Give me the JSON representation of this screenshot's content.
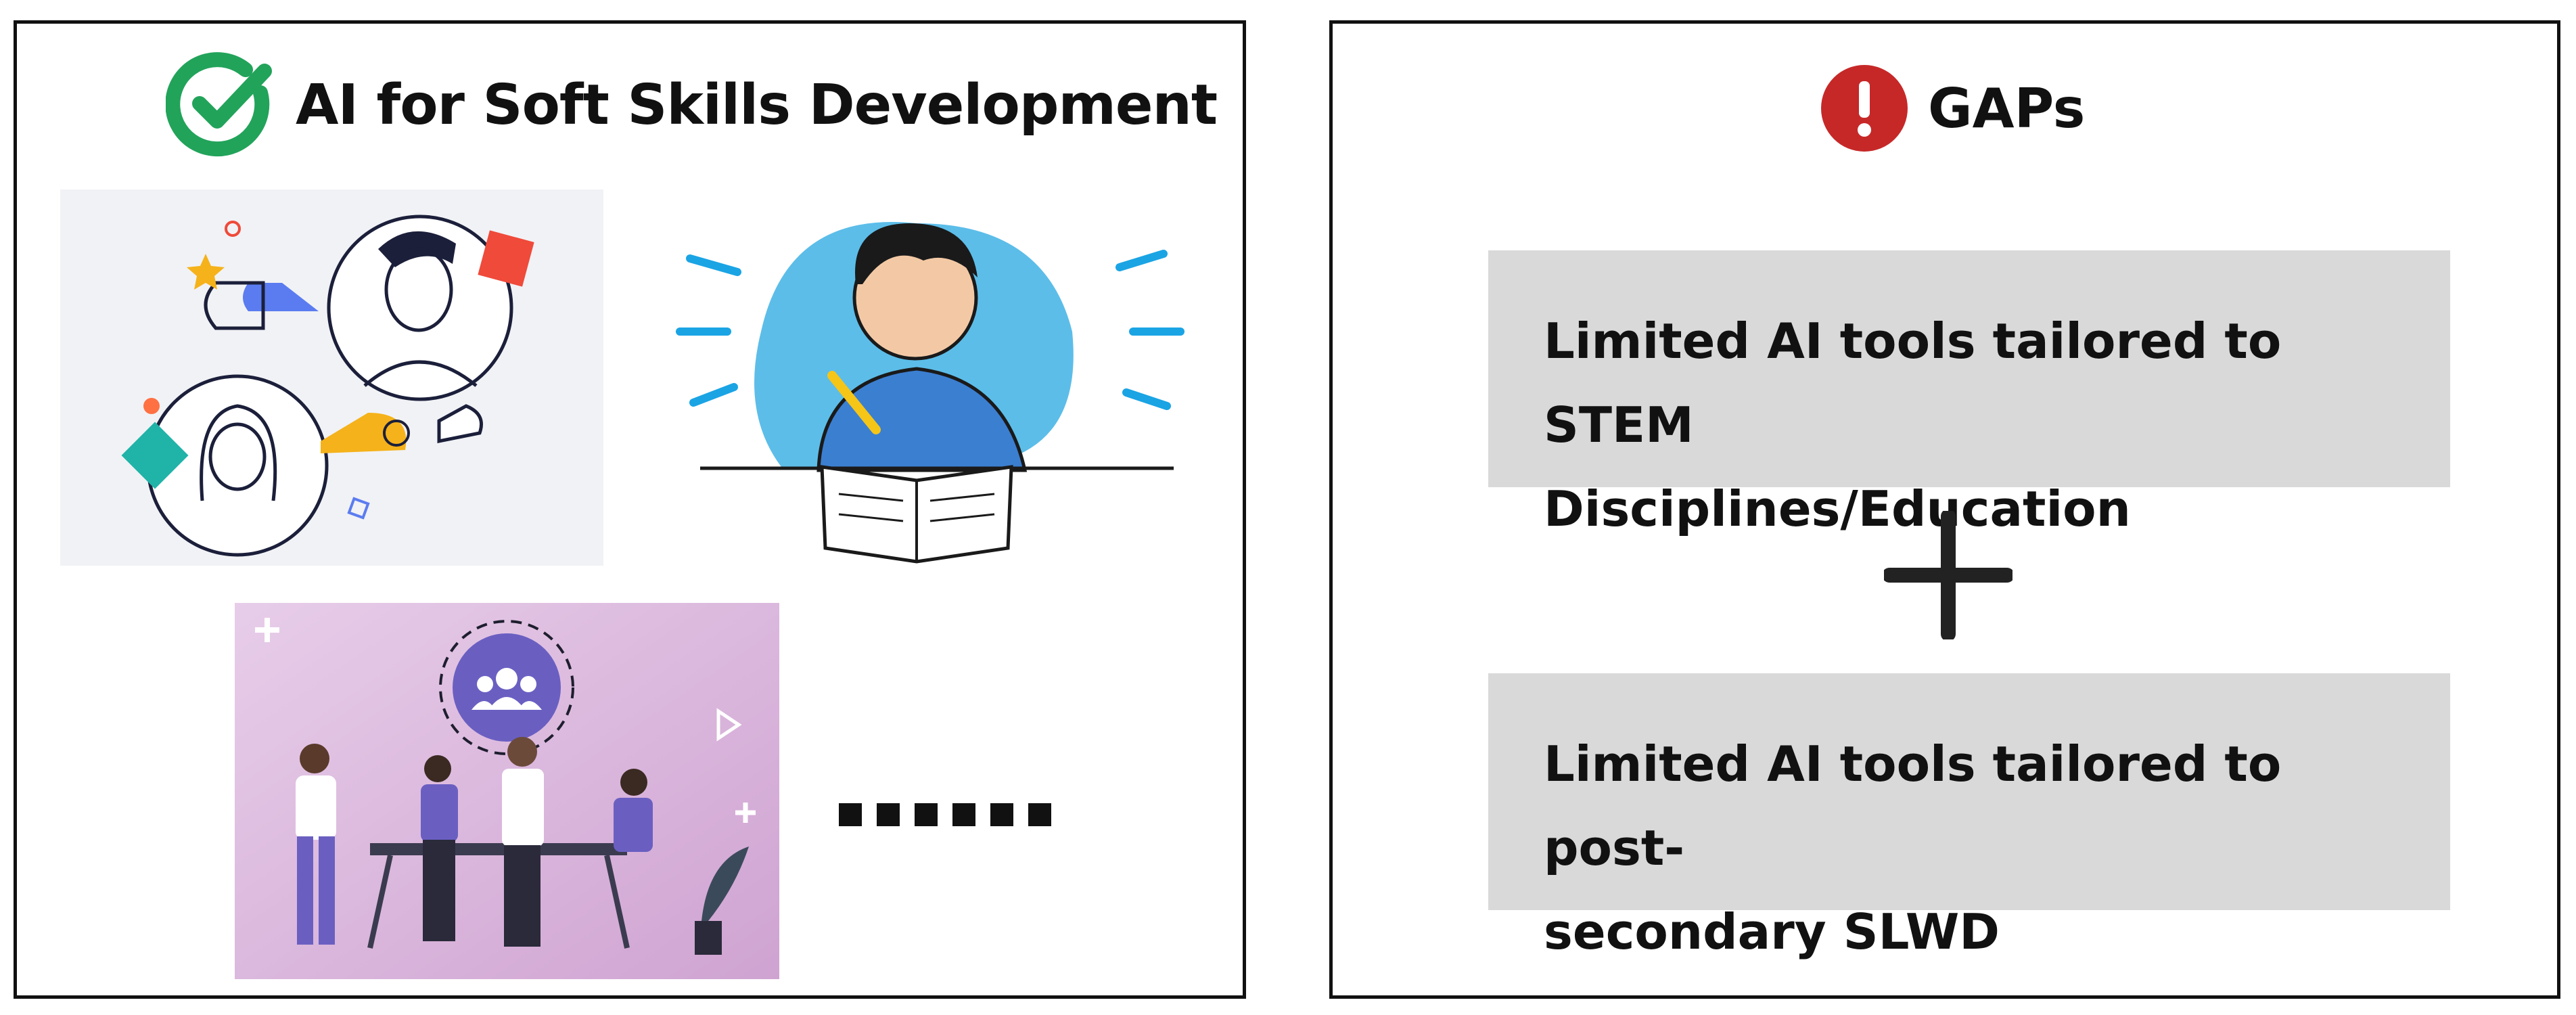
{
  "left_panel": {
    "title": "AI for Soft Skills Development",
    "icon": "check-circle-icon",
    "icon_color": "#22a35a"
  },
  "right_panel": {
    "title": "GAPs",
    "icon": "exclamation-circle-icon",
    "icon_color": "#c62828",
    "gaps": [
      {
        "lines": [
          "Limited AI tools tailored to STEM",
          "Disciplines/Education"
        ]
      },
      {
        "lines": [
          "Limited AI tools tailored to post-",
          "secondary SLWD"
        ]
      }
    ],
    "connector_icon": "plus-icon"
  },
  "illustrations": [
    "chat-illustration",
    "student-writing-illustration",
    "team-meeting-illustration"
  ],
  "ellipsis": "......"
}
